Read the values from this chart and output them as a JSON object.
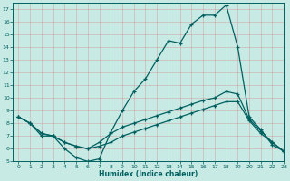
{
  "xlabel": "Humidex (Indice chaleur)",
  "xlim": [
    -0.5,
    23
  ],
  "ylim": [
    5,
    17.5
  ],
  "yticks": [
    5,
    6,
    7,
    8,
    9,
    10,
    11,
    12,
    13,
    14,
    15,
    16,
    17
  ],
  "xticks": [
    0,
    1,
    2,
    3,
    4,
    5,
    6,
    7,
    8,
    9,
    10,
    11,
    12,
    13,
    14,
    15,
    16,
    17,
    18,
    19,
    20,
    21,
    22,
    23
  ],
  "bg_color": "#c8eae4",
  "grid_color": "#b0d4ce",
  "line_color": "#006060",
  "line1_x": [
    0,
    1,
    2,
    3,
    4,
    5,
    6,
    7,
    8,
    9,
    10,
    11,
    12,
    13,
    14,
    15,
    16,
    17,
    18,
    19,
    20,
    21,
    22,
    23
  ],
  "line1_y": [
    8.5,
    8.0,
    7.0,
    7.0,
    6.0,
    5.3,
    5.0,
    5.2,
    7.3,
    9.0,
    10.5,
    11.5,
    13.0,
    14.5,
    14.3,
    15.8,
    16.5,
    16.5,
    17.3,
    14.0,
    8.5,
    7.5,
    6.3,
    5.8
  ],
  "line2_x": [
    0,
    1,
    2,
    3,
    4,
    5,
    6,
    7,
    8,
    9,
    10,
    11,
    12,
    13,
    14,
    15,
    16,
    17,
    18,
    19,
    20,
    21,
    22,
    23
  ],
  "line2_y": [
    8.5,
    8.0,
    7.2,
    7.0,
    6.5,
    6.2,
    6.0,
    6.2,
    6.5,
    7.0,
    7.3,
    7.6,
    7.9,
    8.2,
    8.5,
    8.8,
    9.1,
    9.4,
    9.7,
    9.7,
    8.2,
    7.2,
    6.5,
    5.8
  ],
  "line3_x": [
    0,
    1,
    2,
    3,
    4,
    5,
    6,
    7,
    8,
    9,
    10,
    11,
    12,
    13,
    14,
    15,
    16,
    17,
    18,
    19,
    20,
    21,
    22,
    23
  ],
  "line3_y": [
    8.5,
    8.0,
    7.2,
    7.0,
    6.5,
    6.2,
    6.0,
    6.5,
    7.2,
    7.7,
    8.0,
    8.3,
    8.6,
    8.9,
    9.2,
    9.5,
    9.8,
    10.0,
    10.5,
    10.3,
    8.3,
    7.4,
    6.5,
    5.8
  ]
}
